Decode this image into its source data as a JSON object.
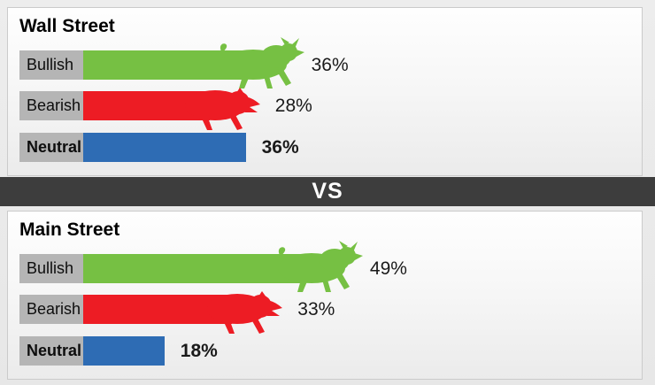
{
  "divider": {
    "label": "VS"
  },
  "sections": [
    {
      "title": "Wall Street",
      "rows": [
        {
          "label": "Bullish",
          "value": 36,
          "percent_text": "36%",
          "color": "#76c043",
          "icon": "bull",
          "emphasis": false
        },
        {
          "label": "Bearish",
          "value": 28,
          "percent_text": "28%",
          "color": "#ed1c24",
          "icon": "bear",
          "emphasis": false
        },
        {
          "label": "Neutral",
          "value": 36,
          "percent_text": "36%",
          "color": "#2e6cb4",
          "icon": "none",
          "emphasis": true
        }
      ]
    },
    {
      "title": "Main Street",
      "rows": [
        {
          "label": "Bullish",
          "value": 49,
          "percent_text": "49%",
          "color": "#76c043",
          "icon": "bull",
          "emphasis": false
        },
        {
          "label": "Bearish",
          "value": 33,
          "percent_text": "33%",
          "color": "#ed1c24",
          "icon": "bear",
          "emphasis": false
        },
        {
          "label": "Neutral",
          "value": 18,
          "percent_text": "18%",
          "color": "#2e6cb4",
          "icon": "none",
          "emphasis": true
        }
      ]
    }
  ],
  "style": {
    "label_bg": "#b5b5b5",
    "vs_bg": "#3d3d3d",
    "panel_border": "#cbcbcb",
    "bullish_green": "#76c043",
    "bearish_red": "#ed1c24",
    "neutral_blue": "#2e6cb4"
  },
  "chart_data": {
    "type": "bar",
    "orientation": "horizontal",
    "title": "Wall Street vs Main Street sentiment",
    "categories": [
      "Bullish",
      "Bearish",
      "Neutral"
    ],
    "series": [
      {
        "name": "Wall Street",
        "values": [
          36,
          28,
          36
        ]
      },
      {
        "name": "Main Street",
        "values": [
          49,
          33,
          18
        ]
      }
    ],
    "unit": "%",
    "value_labels": {
      "Wall Street": [
        "36%",
        "28%",
        "36%"
      ],
      "Main Street": [
        "49%",
        "33%",
        "18%"
      ]
    },
    "bar_colors": [
      "#76c043",
      "#ed1c24",
      "#2e6cb4"
    ],
    "xlim": [
      0,
      60
    ],
    "grid": false,
    "legend_position": "none",
    "annotations": [
      "bull icon on Bullish bars",
      "bear icon on Bearish bars",
      "VS divider between groups"
    ]
  }
}
